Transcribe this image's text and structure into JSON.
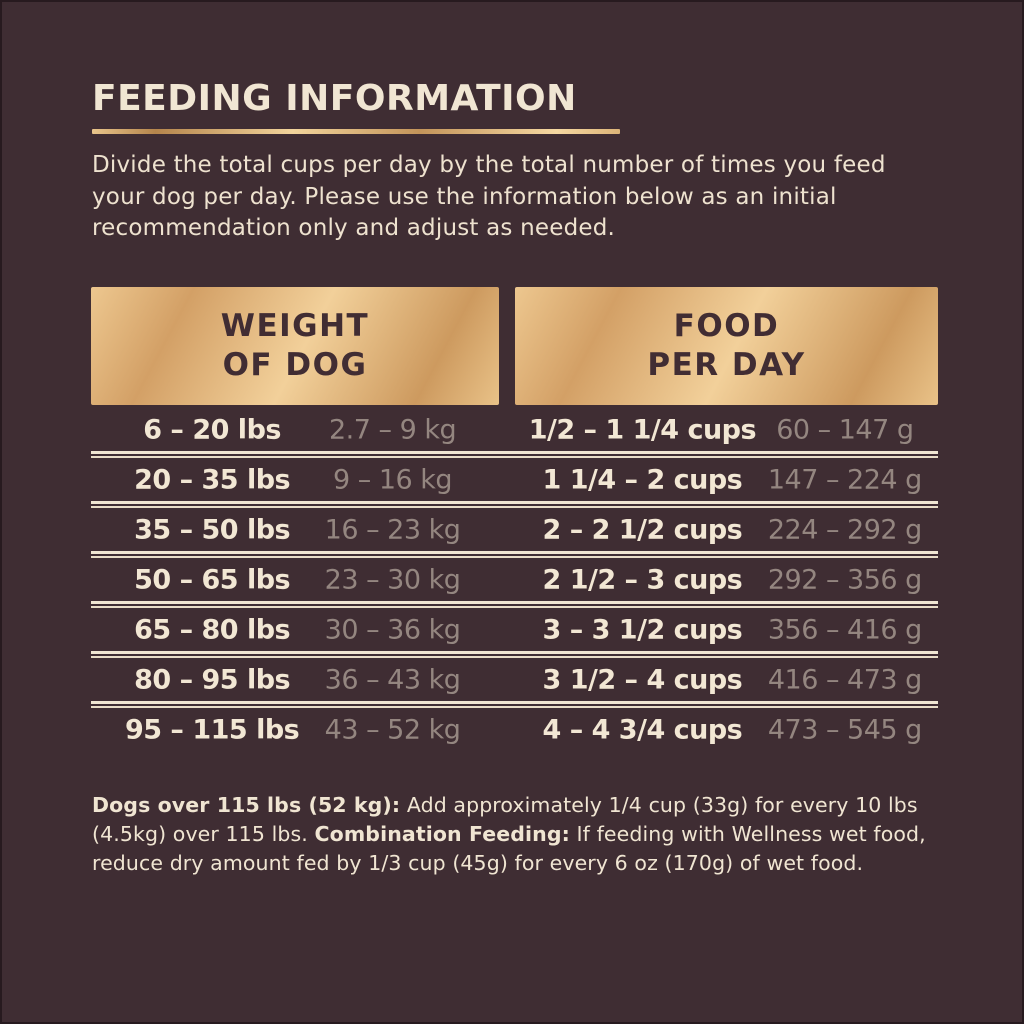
{
  "colors": {
    "background": "#3f2d33",
    "cream_text": "#f2e7d4",
    "gray_text": "#948680",
    "gold_accent": "#e3b97e",
    "gold_box_text": "#412d33"
  },
  "header": {
    "title": "FEEDING INFORMATION",
    "intro": "Divide the total cups per day by the total number of times you feed your dog per day. Please use the information below as an initial recommendation only and adjust as needed."
  },
  "table": {
    "column_headers": [
      {
        "line1": "WEIGHT",
        "line2": "OF DOG"
      },
      {
        "line1": "FOOD",
        "line2": "PER DAY"
      }
    ],
    "rows": [
      {
        "lbs": "6 – 20 lbs",
        "kg": "2.7 – 9 kg",
        "cups": "1/2 – 1 1/4 cups",
        "grams": "60 – 147 g"
      },
      {
        "lbs": "20 – 35 lbs",
        "kg": "9 – 16 kg",
        "cups": "1 1/4 – 2 cups",
        "grams": "147 – 224 g"
      },
      {
        "lbs": "35 – 50 lbs",
        "kg": "16 – 23 kg",
        "cups": "2 – 2 1/2 cups",
        "grams": "224 – 292 g"
      },
      {
        "lbs": "50 – 65 lbs",
        "kg": "23 – 30 kg",
        "cups": "2 1/2 – 3 cups",
        "grams": "292 – 356 g"
      },
      {
        "lbs": "65 – 80 lbs",
        "kg": "30 – 36 kg",
        "cups": "3 – 3 1/2 cups",
        "grams": "356 – 416 g"
      },
      {
        "lbs": "80 – 95 lbs",
        "kg": "36 – 43 kg",
        "cups": "3 1/2 – 4 cups",
        "grams": "416 – 473 g"
      },
      {
        "lbs": "95 – 115 lbs",
        "kg": "43 – 52 kg",
        "cups": "4 – 4 3/4 cups",
        "grams": "473 – 545 g"
      }
    ]
  },
  "footnote": {
    "label1": "Dogs over 115 lbs (52 kg):",
    "text1": " Add approximately 1/4 cup (33g) for every 10 lbs (4.5kg) over 115 lbs. ",
    "label2": "Combination Feeding:",
    "text2": " If feeding with Wellness wet food, reduce dry amount fed by 1/3 cup (45g) for every 6 oz (170g) of wet food."
  }
}
